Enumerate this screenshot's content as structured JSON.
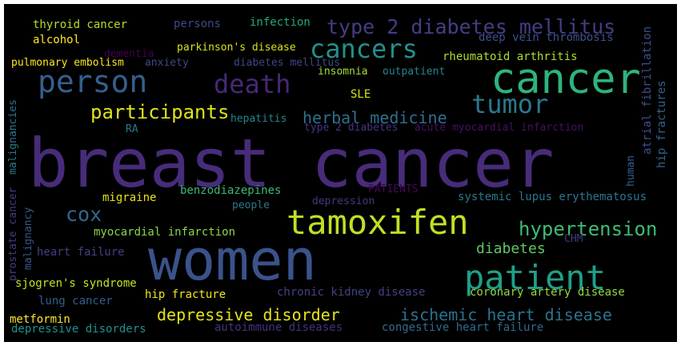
{
  "words": [
    {
      "text": "breast cancer",
      "color": "#472c7a"
    },
    {
      "text": "women",
      "color": "#3b528b"
    },
    {
      "text": "cancer",
      "color": "#2fb47c"
    },
    {
      "text": "tamoxifen",
      "color": "#c2df23"
    },
    {
      "text": "patient",
      "color": "#1fa088"
    },
    {
      "text": "person",
      "color": "#355f8d"
    },
    {
      "text": "cancers",
      "color": "#21918c"
    },
    {
      "text": "death",
      "color": "#482878"
    },
    {
      "text": "tumor",
      "color": "#2a788e"
    },
    {
      "text": "type 2 diabetes mellitus",
      "color": "#433e85"
    },
    {
      "text": "participants",
      "color": "#dde318"
    },
    {
      "text": "cox",
      "color": "#31688e"
    },
    {
      "text": "hypertension",
      "color": "#3dbc74"
    },
    {
      "text": "herbal medicine",
      "color": "#2d708e"
    },
    {
      "text": "ischemic heart disease",
      "color": "#2c728e"
    },
    {
      "text": "depressive disorder",
      "color": "#e5e419"
    },
    {
      "text": "diabetes",
      "color": "#5ec962"
    },
    {
      "text": "thyroid cancer",
      "color": "#b5de2b"
    },
    {
      "text": "persons",
      "color": "#3e4a89"
    },
    {
      "text": "infection",
      "color": "#22a884"
    },
    {
      "text": "alcohol",
      "color": "#fde725"
    },
    {
      "text": "dementia",
      "color": "#440154"
    },
    {
      "text": "parkinson's disease",
      "color": "#d8e219"
    },
    {
      "text": "deep vein thrombosis",
      "color": "#3b528b"
    },
    {
      "text": "pulmonary embolism",
      "color": "#fde725"
    },
    {
      "text": "anxiety",
      "color": "#3e4989"
    },
    {
      "text": "diabetes mellitus",
      "color": "#3f4788"
    },
    {
      "text": "rheumatoid arthritis",
      "color": "#addc30"
    },
    {
      "text": "insomnia",
      "color": "#a5db36"
    },
    {
      "text": "outpatient",
      "color": "#25848e"
    },
    {
      "text": "SLE",
      "color": "#d2e21b"
    },
    {
      "text": "hepatitis",
      "color": "#24868e"
    },
    {
      "text": "type 2 diabetes",
      "color": "#453581"
    },
    {
      "text": "acute myocardial infarction",
      "color": "#471063"
    },
    {
      "text": "RA",
      "color": "#2a788e"
    },
    {
      "text": "benzodiazepines",
      "color": "#3aba76"
    },
    {
      "text": "PATIENTS",
      "color": "#46075a"
    },
    {
      "text": "migraine",
      "color": "#e2e418"
    },
    {
      "text": "depression",
      "color": "#443983"
    },
    {
      "text": "systemic lupus erythematosus",
      "color": "#2a768e"
    },
    {
      "text": "people",
      "color": "#2c738e"
    },
    {
      "text": "myocardial infarction",
      "color": "#8bd646"
    },
    {
      "text": "CHM",
      "color": "#443a83"
    },
    {
      "text": "heart failure",
      "color": "#424086"
    },
    {
      "text": "sjogren's syndrome",
      "color": "#cae11f"
    },
    {
      "text": "hip fracture",
      "color": "#f1e51d"
    },
    {
      "text": "chronic kidney disease",
      "color": "#424186"
    },
    {
      "text": "coronary artery disease",
      "color": "#95d840"
    },
    {
      "text": "lung cancer",
      "color": "#355e8d"
    },
    {
      "text": "metformin",
      "color": "#fde725"
    },
    {
      "text": "depressive disorders",
      "color": "#20928c"
    },
    {
      "text": "autoimmune diseases",
      "color": "#46327e"
    },
    {
      "text": "congestive heart failure",
      "color": "#2f6b8e"
    },
    {
      "text": "atrial fibrillation",
      "color": "#3b528b"
    },
    {
      "text": "hip fractures",
      "color": "#33638d"
    },
    {
      "text": "human",
      "color": "#34618d"
    },
    {
      "text": "malignancies",
      "color": "#2a788e"
    },
    {
      "text": "prostate cancer",
      "color": "#433d84"
    },
    {
      "text": "malignancy",
      "color": "#38588c"
    }
  ]
}
